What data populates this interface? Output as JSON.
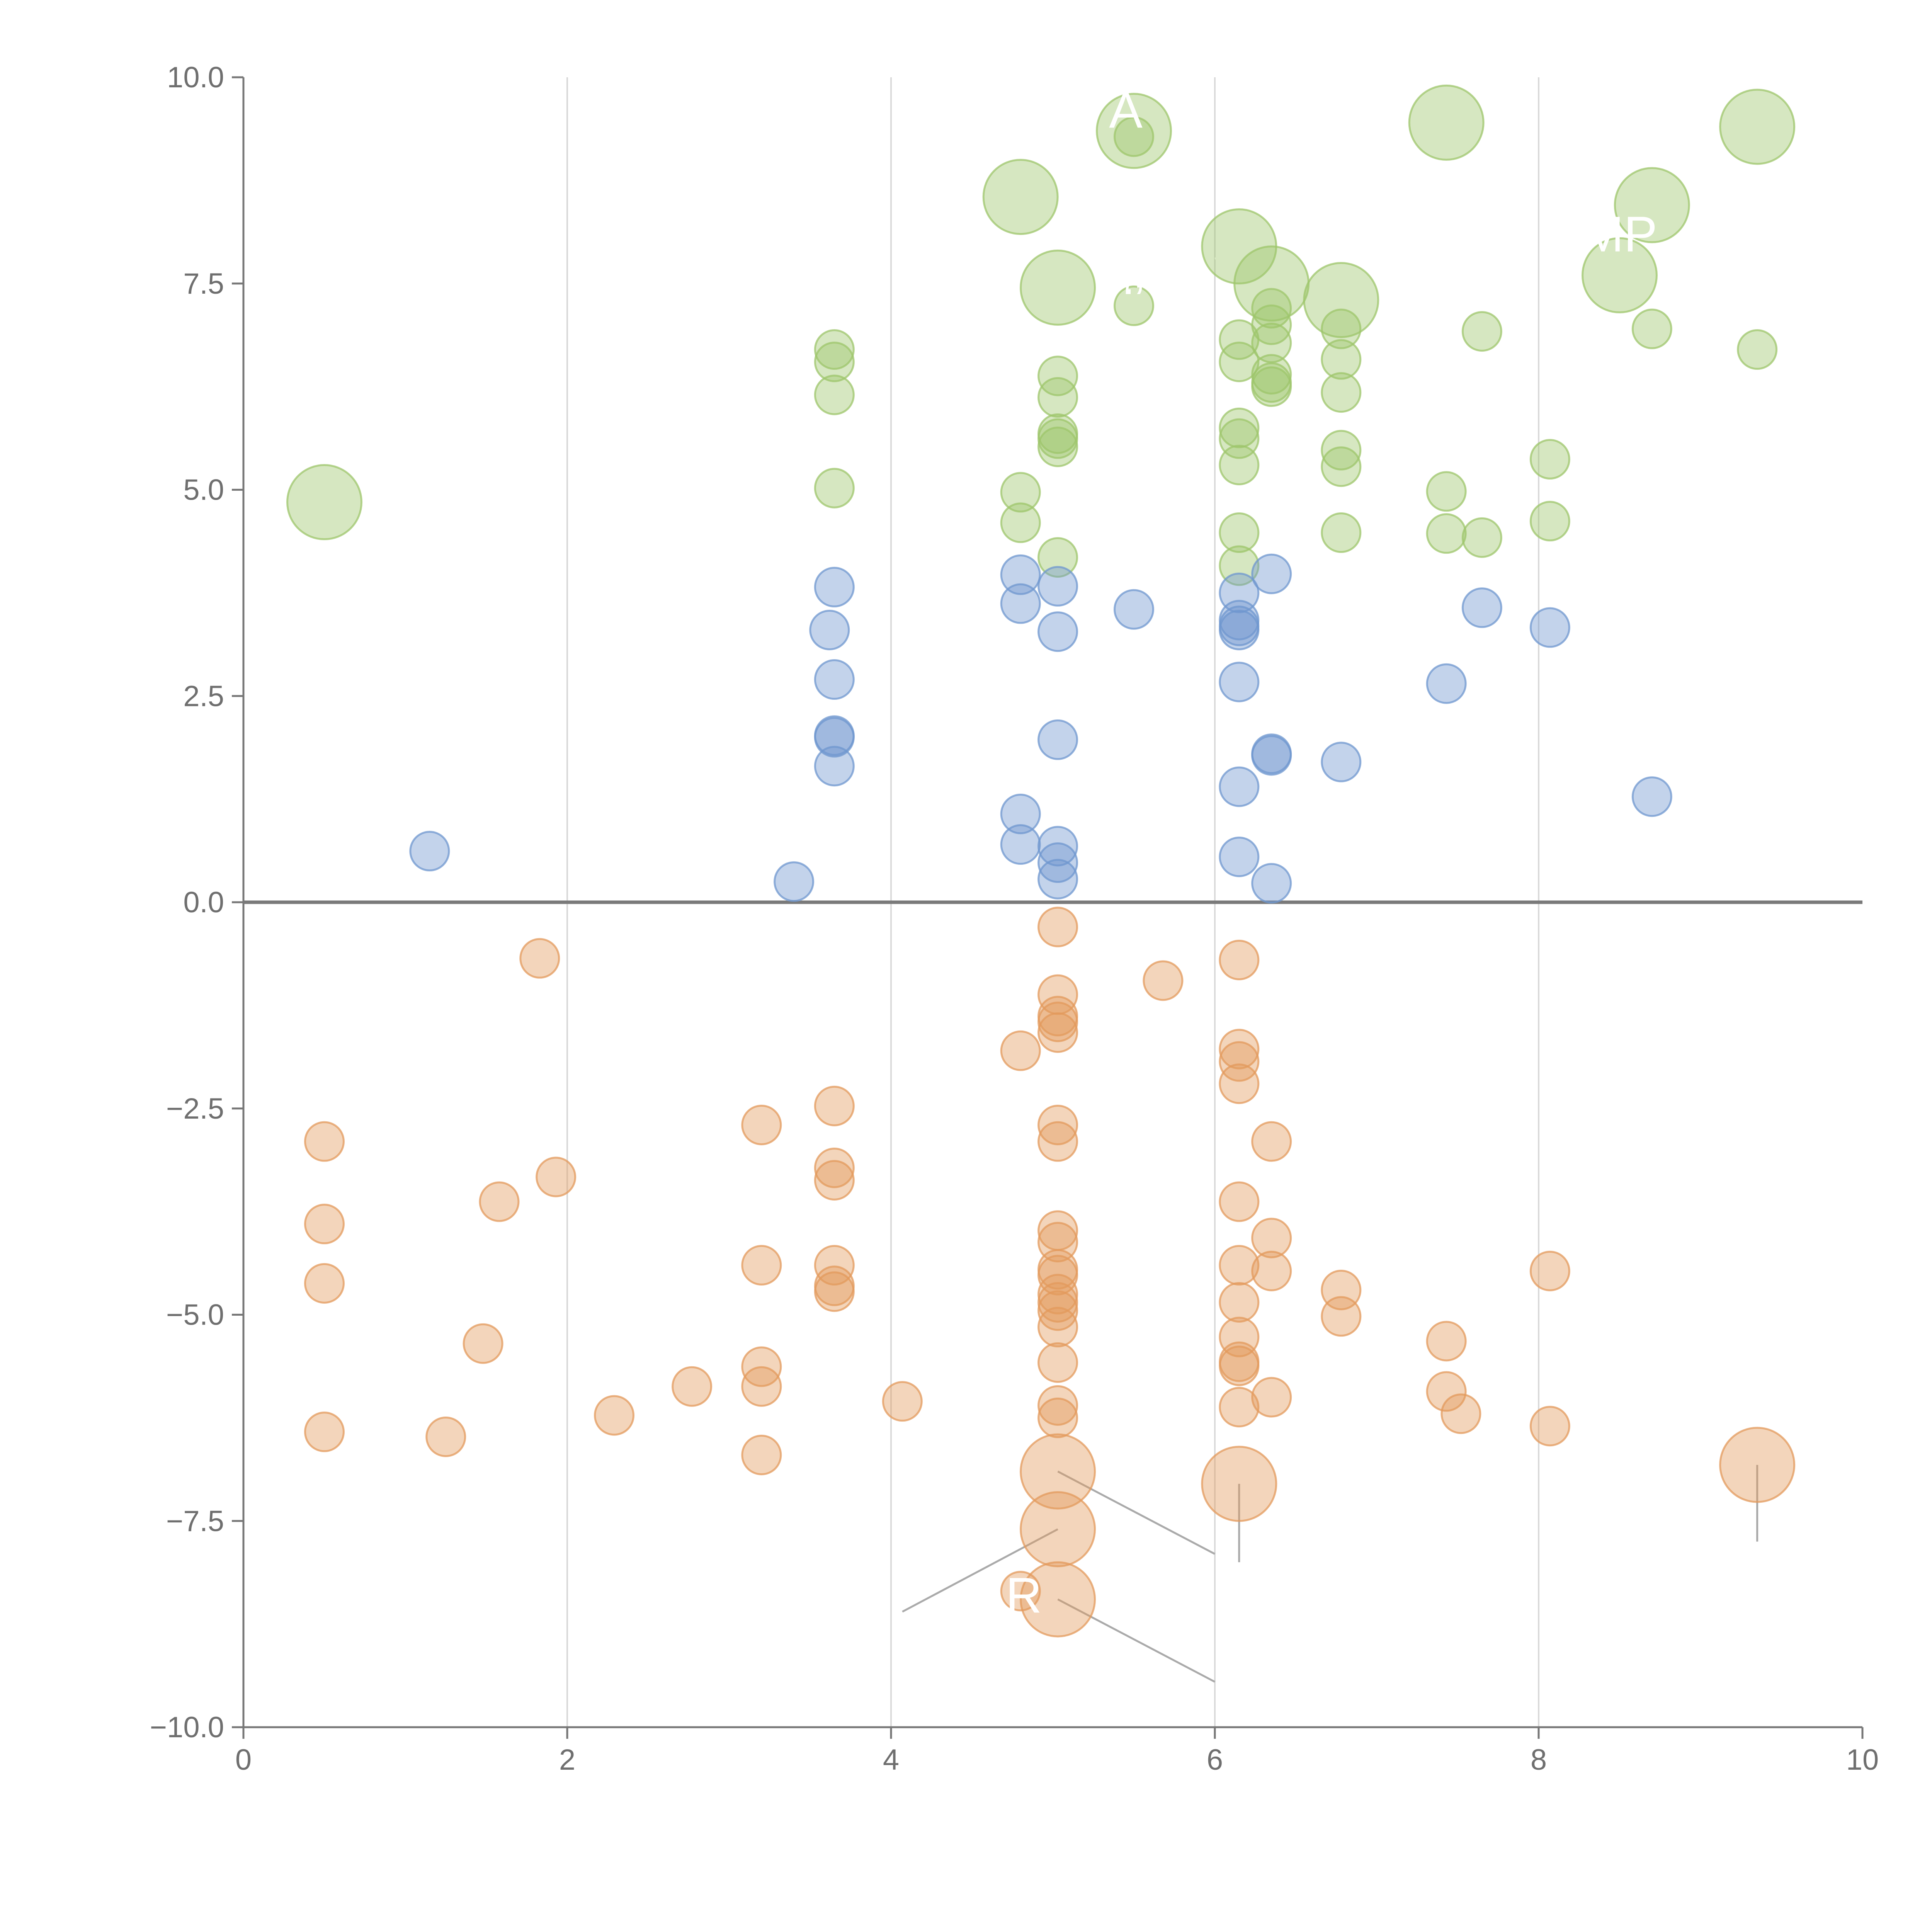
{
  "chart_data": {
    "type": "scatter",
    "title": "",
    "xlabel": "",
    "ylabel": "",
    "xlim": [
      0,
      10
    ],
    "ylim": [
      -10,
      10
    ],
    "grid": "vertical",
    "x_ticks": [
      "0",
      "2",
      "4",
      "6",
      "8",
      "10"
    ],
    "y_ticks": [
      "10.0",
      "7.5",
      "5.0",
      "2.5",
      "0.0",
      "−2.5",
      "−5.0",
      "−7.5",
      "−10.0"
    ],
    "colors": {
      "green": "#9ec56b",
      "blue": "#6f97cf",
      "orange": "#e39a5c",
      "axis": "#777777",
      "grid": "#d9d9d9",
      "zero_line": "#7a7a7a",
      "leader": "#aaaaaa",
      "label": "#ffffff"
    },
    "series": [
      {
        "name": "green",
        "color": "#9ec56b",
        "points": [
          {
            "x": 0.5,
            "y": 4.85,
            "big": true
          },
          {
            "x": 4.8,
            "y": 8.55,
            "big": true
          },
          {
            "x": 5.03,
            "y": 7.45,
            "big": true
          },
          {
            "x": 5.5,
            "y": 9.35,
            "big": true
          },
          {
            "x": 6.15,
            "y": 7.95,
            "big": true
          },
          {
            "x": 6.35,
            "y": 7.5,
            "big": true
          },
          {
            "x": 6.78,
            "y": 7.3,
            "big": true
          },
          {
            "x": 7.43,
            "y": 9.45,
            "big": true
          },
          {
            "x": 8.5,
            "y": 7.6,
            "big": true
          },
          {
            "x": 8.7,
            "y": 8.45,
            "big": true
          },
          {
            "x": 9.35,
            "y": 9.4,
            "big": true
          },
          {
            "x": 5.5,
            "y": 9.28
          },
          {
            "x": 5.5,
            "y": 7.23
          },
          {
            "x": 3.65,
            "y": 6.7
          },
          {
            "x": 3.65,
            "y": 6.55
          },
          {
            "x": 3.65,
            "y": 6.15
          },
          {
            "x": 3.65,
            "y": 5.02
          },
          {
            "x": 4.8,
            "y": 4.97
          },
          {
            "x": 4.8,
            "y": 4.6
          },
          {
            "x": 5.03,
            "y": 6.38
          },
          {
            "x": 5.03,
            "y": 6.12
          },
          {
            "x": 5.03,
            "y": 5.68
          },
          {
            "x": 5.03,
            "y": 5.62
          },
          {
            "x": 5.03,
            "y": 5.52
          },
          {
            "x": 5.03,
            "y": 4.18
          },
          {
            "x": 6.15,
            "y": 6.82
          },
          {
            "x": 6.15,
            "y": 6.55
          },
          {
            "x": 6.15,
            "y": 5.75
          },
          {
            "x": 6.15,
            "y": 5.62
          },
          {
            "x": 6.15,
            "y": 5.3
          },
          {
            "x": 6.15,
            "y": 4.48
          },
          {
            "x": 6.15,
            "y": 4.08
          },
          {
            "x": 6.35,
            "y": 7.2
          },
          {
            "x": 6.35,
            "y": 7.0
          },
          {
            "x": 6.35,
            "y": 6.78
          },
          {
            "x": 6.35,
            "y": 6.4
          },
          {
            "x": 6.35,
            "y": 6.3
          },
          {
            "x": 6.35,
            "y": 6.25
          },
          {
            "x": 6.78,
            "y": 6.95
          },
          {
            "x": 6.78,
            "y": 6.58
          },
          {
            "x": 6.78,
            "y": 6.18
          },
          {
            "x": 6.78,
            "y": 5.48
          },
          {
            "x": 6.78,
            "y": 5.28
          },
          {
            "x": 6.78,
            "y": 4.48
          },
          {
            "x": 7.43,
            "y": 4.98
          },
          {
            "x": 7.43,
            "y": 4.47
          },
          {
            "x": 7.65,
            "y": 6.92
          },
          {
            "x": 7.65,
            "y": 4.42
          },
          {
            "x": 8.07,
            "y": 5.37
          },
          {
            "x": 8.07,
            "y": 4.62
          },
          {
            "x": 8.7,
            "y": 6.95
          },
          {
            "x": 9.35,
            "y": 6.7
          }
        ]
      },
      {
        "name": "blue",
        "color": "#6f97cf",
        "points": [
          {
            "x": 1.15,
            "y": 0.62
          },
          {
            "x": 3.4,
            "y": 0.25
          },
          {
            "x": 3.62,
            "y": 3.3
          },
          {
            "x": 3.65,
            "y": 3.82
          },
          {
            "x": 3.65,
            "y": 2.7
          },
          {
            "x": 3.65,
            "y": 2.02
          },
          {
            "x": 3.65,
            "y": 2.0
          },
          {
            "x": 3.65,
            "y": 1.65
          },
          {
            "x": 4.8,
            "y": 3.97
          },
          {
            "x": 4.8,
            "y": 3.62
          },
          {
            "x": 4.8,
            "y": 1.07
          },
          {
            "x": 4.8,
            "y": 0.7
          },
          {
            "x": 5.03,
            "y": 3.83
          },
          {
            "x": 5.03,
            "y": 3.28
          },
          {
            "x": 5.03,
            "y": 1.97
          },
          {
            "x": 5.03,
            "y": 0.68
          },
          {
            "x": 5.03,
            "y": 0.48
          },
          {
            "x": 5.03,
            "y": 0.28
          },
          {
            "x": 5.5,
            "y": 3.55
          },
          {
            "x": 6.15,
            "y": 3.75
          },
          {
            "x": 6.15,
            "y": 3.42
          },
          {
            "x": 6.15,
            "y": 3.35
          },
          {
            "x": 6.15,
            "y": 3.3
          },
          {
            "x": 6.15,
            "y": 2.67
          },
          {
            "x": 6.15,
            "y": 1.4
          },
          {
            "x": 6.15,
            "y": 0.55
          },
          {
            "x": 6.35,
            "y": 3.98
          },
          {
            "x": 6.35,
            "y": 1.8
          },
          {
            "x": 6.35,
            "y": 1.78
          },
          {
            "x": 6.35,
            "y": 0.23
          },
          {
            "x": 6.78,
            "y": 1.7
          },
          {
            "x": 7.43,
            "y": 2.65
          },
          {
            "x": 7.65,
            "y": 3.57
          },
          {
            "x": 8.07,
            "y": 3.33
          },
          {
            "x": 8.7,
            "y": 1.28
          }
        ]
      },
      {
        "name": "orange",
        "color": "#e39a5c",
        "points": [
          {
            "x": 5.03,
            "y": -6.9,
            "big": true
          },
          {
            "x": 5.03,
            "y": -7.6,
            "big": true
          },
          {
            "x": 5.03,
            "y": -8.45,
            "big": true
          },
          {
            "x": 6.15,
            "y": -7.05,
            "big": true
          },
          {
            "x": 9.35,
            "y": -6.82,
            "big": true
          },
          {
            "x": 0.5,
            "y": -2.9
          },
          {
            "x": 0.5,
            "y": -3.9
          },
          {
            "x": 0.5,
            "y": -4.62
          },
          {
            "x": 0.5,
            "y": -6.42
          },
          {
            "x": 1.25,
            "y": -6.48
          },
          {
            "x": 1.48,
            "y": -5.35
          },
          {
            "x": 1.58,
            "y": -3.63
          },
          {
            "x": 1.83,
            "y": -0.68
          },
          {
            "x": 1.93,
            "y": -3.33
          },
          {
            "x": 2.29,
            "y": -6.22
          },
          {
            "x": 2.77,
            "y": -5.87
          },
          {
            "x": 3.2,
            "y": -2.7
          },
          {
            "x": 3.2,
            "y": -4.4
          },
          {
            "x": 3.2,
            "y": -5.63
          },
          {
            "x": 3.2,
            "y": -5.87
          },
          {
            "x": 3.2,
            "y": -6.7
          },
          {
            "x": 3.65,
            "y": -2.47
          },
          {
            "x": 3.65,
            "y": -3.22
          },
          {
            "x": 3.65,
            "y": -3.37
          },
          {
            "x": 3.65,
            "y": -4.4
          },
          {
            "x": 3.65,
            "y": -4.65
          },
          {
            "x": 3.65,
            "y": -4.72
          },
          {
            "x": 4.07,
            "y": -6.05
          },
          {
            "x": 4.8,
            "y": -1.8
          },
          {
            "x": 4.8,
            "y": -8.35
          },
          {
            "x": 5.03,
            "y": -0.3
          },
          {
            "x": 5.03,
            "y": -1.12
          },
          {
            "x": 5.03,
            "y": -1.38
          },
          {
            "x": 5.03,
            "y": -1.45
          },
          {
            "x": 5.03,
            "y": -1.58
          },
          {
            "x": 5.03,
            "y": -2.7
          },
          {
            "x": 5.03,
            "y": -2.9
          },
          {
            "x": 5.03,
            "y": -3.98
          },
          {
            "x": 5.03,
            "y": -4.12
          },
          {
            "x": 5.03,
            "y": -4.45
          },
          {
            "x": 5.03,
            "y": -4.52
          },
          {
            "x": 5.03,
            "y": -4.75
          },
          {
            "x": 5.03,
            "y": -4.85
          },
          {
            "x": 5.03,
            "y": -4.95
          },
          {
            "x": 5.03,
            "y": -5.15
          },
          {
            "x": 5.03,
            "y": -5.58
          },
          {
            "x": 5.03,
            "y": -6.1
          },
          {
            "x": 5.03,
            "y": -6.25
          },
          {
            "x": 5.68,
            "y": -0.95
          },
          {
            "x": 6.15,
            "y": -0.7
          },
          {
            "x": 6.15,
            "y": -1.78
          },
          {
            "x": 6.15,
            "y": -1.93
          },
          {
            "x": 6.15,
            "y": -2.2
          },
          {
            "x": 6.15,
            "y": -3.63
          },
          {
            "x": 6.15,
            "y": -4.4
          },
          {
            "x": 6.15,
            "y": -4.85
          },
          {
            "x": 6.15,
            "y": -5.27
          },
          {
            "x": 6.15,
            "y": -5.57
          },
          {
            "x": 6.15,
            "y": -5.62
          },
          {
            "x": 6.15,
            "y": -6.12
          },
          {
            "x": 6.35,
            "y": -2.9
          },
          {
            "x": 6.35,
            "y": -4.07
          },
          {
            "x": 6.35,
            "y": -4.47
          },
          {
            "x": 6.35,
            "y": -6.0
          },
          {
            "x": 6.78,
            "y": -4.7
          },
          {
            "x": 6.78,
            "y": -5.02
          },
          {
            "x": 7.43,
            "y": -5.32
          },
          {
            "x": 7.43,
            "y": -5.93
          },
          {
            "x": 7.52,
            "y": -6.2
          },
          {
            "x": 8.07,
            "y": -4.47
          },
          {
            "x": 8.07,
            "y": -6.35
          }
        ]
      }
    ],
    "annotations": [
      {
        "text": "R",
        "x": 4.82,
        "y": -8.4,
        "anchor": [
          5.03,
          -8.45
        ],
        "pointer": [
          6.0,
          -9.45
        ],
        "leader": "gray"
      },
      {
        "text": "MP",
        "x": 8.5,
        "y": 8.1,
        "anchor": [
          8.5,
          7.6
        ],
        "pointer": [
          8.6,
          7.1
        ],
        "leader": "white"
      },
      {
        "text": "A",
        "x": 5.45,
        "y": 9.6,
        "anchor": [
          5.5,
          9.35
        ],
        "pointer": [
          5.55,
          9.55
        ],
        "leader": "white"
      },
      {
        "text": "‘’",
        "x": 5.5,
        "y": 7.3,
        "anchor": [
          5.5,
          7.23
        ],
        "pointer": [
          5.5,
          7.3
        ],
        "leader": "white"
      }
    ],
    "leader_lines": [
      {
        "from": [
          5.03,
          -6.9
        ],
        "to": [
          6.0,
          -7.9
        ],
        "color": "gray"
      },
      {
        "from": [
          5.03,
          -7.6
        ],
        "to": [
          4.07,
          -8.6
        ],
        "color": "gray"
      },
      {
        "from": [
          6.15,
          -7.05
        ],
        "to": [
          6.15,
          -8.0
        ],
        "color": "gray"
      },
      {
        "from": [
          9.35,
          -6.82
        ],
        "to": [
          9.35,
          -7.75
        ],
        "color": "gray"
      },
      {
        "from": [
          4.8,
          8.55
        ],
        "to": [
          4.6,
          8.7
        ],
        "color": "white"
      },
      {
        "from": [
          5.03,
          7.45
        ],
        "to": [
          5.1,
          7.1
        ],
        "color": "white"
      },
      {
        "from": [
          6.15,
          7.95
        ],
        "to": [
          6.0,
          7.8
        ],
        "color": "white"
      },
      {
        "from": [
          6.35,
          7.5
        ],
        "to": [
          6.5,
          7.3
        ],
        "color": "white"
      },
      {
        "from": [
          6.78,
          7.3
        ],
        "to": [
          6.85,
          6.9
        ],
        "color": "white"
      },
      {
        "from": [
          7.43,
          9.45
        ],
        "to": [
          7.2,
          9.5
        ],
        "color": "white"
      },
      {
        "from": [
          8.7,
          8.45
        ],
        "to": [
          8.85,
          8.2
        ],
        "color": "white"
      },
      {
        "from": [
          9.35,
          9.4
        ],
        "to": [
          9.1,
          9.45
        ],
        "color": "white"
      }
    ]
  }
}
